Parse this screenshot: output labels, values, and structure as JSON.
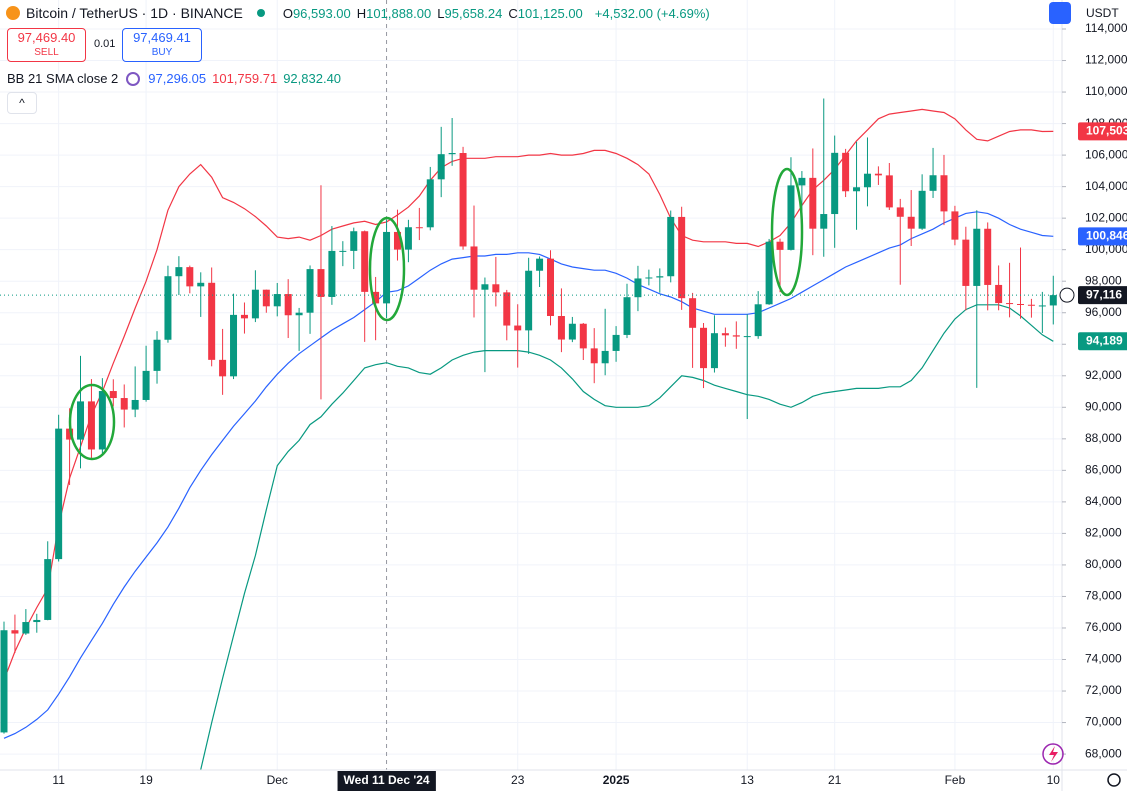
{
  "header": {
    "symbol": "Bitcoin / TetherUS · 1D · BINANCE",
    "ohlc": [
      {
        "key": "O",
        "value": "96,593.00"
      },
      {
        "key": "H",
        "value": "101,888.00"
      },
      {
        "key": "L",
        "value": "95,658.24"
      },
      {
        "key": "C",
        "value": "101,125.00"
      }
    ],
    "change": "+4,532.00 (+4.69%)",
    "currency": "USDT"
  },
  "trade": {
    "sell_price": "97,469.40",
    "sell": "SELL",
    "spread": "0.01",
    "buy_price": "97,469.41",
    "buy": "BUY"
  },
  "indicator": {
    "name": "BB 21 SMA close 2",
    "values": [
      {
        "text": "97,296.05",
        "color": "#2962ff"
      },
      {
        "text": "101,759.71",
        "color": "#f23645"
      },
      {
        "text": "92,832.40",
        "color": "#089981"
      }
    ]
  },
  "chart_data": {
    "type": "candlestick",
    "categories": [
      null,
      null,
      null,
      null,
      null,
      "11",
      null,
      null,
      null,
      null,
      null,
      null,
      null,
      "19",
      null,
      null,
      null,
      null,
      null,
      null,
      null,
      null,
      null,
      null,
      null,
      "Dec",
      null,
      null,
      null,
      null,
      null,
      null,
      null,
      null,
      null,
      "Wed 11 Dec '24",
      null,
      null,
      null,
      null,
      null,
      null,
      null,
      null,
      null,
      null,
      null,
      "23",
      null,
      null,
      null,
      null,
      null,
      null,
      null,
      null,
      "2025",
      null,
      null,
      null,
      null,
      null,
      null,
      null,
      null,
      null,
      null,
      null,
      "13",
      null,
      null,
      null,
      null,
      null,
      null,
      null,
      "21",
      null,
      null,
      null,
      null,
      null,
      null,
      null,
      null,
      null,
      null,
      "Feb",
      null,
      null,
      null,
      null,
      null,
      null,
      null,
      null,
      "10"
    ],
    "crosshair_index": 35,
    "open": [
      69374,
      75857,
      75648,
      76377,
      76509,
      80370,
      88647,
      87952,
      90375,
      87325,
      91032,
      90587,
      89855,
      90465,
      92310,
      94286,
      98317,
      98893,
      97673,
      97900,
      93010,
      91965,
      95864,
      95643,
      97461,
      96407,
      97185,
      95840,
      96002,
      98768,
      97000,
      99921,
      99923,
      101170,
      97323,
      96593,
      101126,
      100004,
      101424,
      101420,
      104463,
      106058,
      106133,
      100204,
      97461,
      97805,
      97292,
      95187,
      94881,
      98664,
      99430,
      95792,
      94299,
      95301,
      93738,
      92793,
      93576,
      94592,
      96985,
      98174,
      98236,
      98315,
      102078,
      96922,
      95043,
      92485,
      94702,
      94567,
      94488,
      94517,
      96535,
      100505,
      99987,
      104078,
      104556,
      101332,
      102261,
      106144,
      103706,
      103960,
      104820,
      104714,
      102682,
      102087,
      101332,
      103734,
      104722,
      102429,
      100636,
      97700,
      101328,
      97763,
      96613,
      96554,
      96506,
      96444,
      96462
    ],
    "high": [
      76400,
      76849,
      77199,
      76900,
      81500,
      89530,
      89940,
      93265,
      91790,
      91850,
      91779,
      91449,
      92594,
      93905,
      94831,
      98984,
      99588,
      98990,
      98564,
      98871,
      94973,
      97208,
      96650,
      98693,
      97469,
      97888,
      98130,
      96305,
      99000,
      104088,
      101500,
      100540,
      101399,
      101215,
      98270,
      101888,
      102540,
      101895,
      102650,
      105250,
      107793,
      108353,
      106524,
      102800,
      98233,
      99540,
      97448,
      96538,
      99487,
      99569,
      99963,
      97544,
      95733,
      95350,
      95024,
      96250,
      95151,
      97839,
      98976,
      98734,
      98813,
      102482,
      102724,
      97258,
      95349,
      95837,
      95060,
      95450,
      95900,
      97371,
      100681,
      100700,
      105865,
      104988,
      106422,
      109588,
      107240,
      106394,
      106850,
      107120,
      105286,
      105500,
      103221,
      103783,
      104782,
      106457,
      106012,
      102783,
      101456,
      102500,
      101729,
      99000,
      99167,
      100137,
      96880,
      97323,
      98345
    ],
    "low": [
      69300,
      74416,
      75560,
      75700,
      76490,
      80216,
      85072,
      86127,
      86668,
      87073,
      90056,
      88722,
      89376,
      90357,
      91500,
      94100,
      97122,
      97232,
      95734,
      92600,
      90791,
      91792,
      94677,
      95407,
      96000,
      95770,
      94395,
      93578,
      94660,
      90500,
      96500,
      98955,
      98771,
      94150,
      94256,
      95658,
      99311,
      99205,
      100610,
      101227,
      103333,
      105321,
      100000,
      95700,
      92232,
      96398,
      94250,
      92520,
      93384,
      97632,
      95199,
      93500,
      94135,
      93000,
      91530,
      92033,
      92888,
      94392,
      96100,
      97735,
      97271,
      97926,
      96181,
      92500,
      91220,
      92206,
      93844,
      93711,
      89256,
      94346,
      96500,
      97300,
      99950,
      102277,
      99651,
      99550,
      100119,
      103339,
      101262,
      102750,
      104106,
      102520,
      97777,
      100233,
      101256,
      103281,
      101560,
      100279,
      96150,
      91231,
      96150,
      96155,
      95707,
      95620,
      95688,
      94713,
      95256
    ],
    "close": [
      75857,
      75648,
      76377,
      76509,
      80370,
      88647,
      87952,
      90375,
      87325,
      91032,
      90587,
      89855,
      90465,
      92310,
      94286,
      98317,
      98893,
      97673,
      97900,
      93010,
      91965,
      95864,
      95643,
      97461,
      96407,
      97185,
      95840,
      96002,
      98768,
      97000,
      99921,
      99923,
      101170,
      97323,
      96593,
      101125,
      100004,
      101424,
      101420,
      104463,
      106058,
      106133,
      100204,
      97461,
      97805,
      97292,
      95187,
      94881,
      98664,
      99430,
      95792,
      94299,
      95301,
      93738,
      92793,
      93576,
      94592,
      96985,
      98174,
      98236,
      98315,
      102078,
      96922,
      95043,
      92485,
      94702,
      94567,
      94488,
      94517,
      96535,
      100505,
      99987,
      104078,
      104556,
      101332,
      102261,
      106144,
      103706,
      103960,
      104820,
      104714,
      102682,
      102087,
      101332,
      103734,
      104722,
      102429,
      100636,
      97700,
      101328,
      97763,
      96613,
      96554,
      96506,
      96444,
      96462,
      97116
    ],
    "close_label": "97,116",
    "up_color": "#089981",
    "down_color": "#f23645",
    "bands": {
      "upper": {
        "color": "#f23645",
        "last_label": "107,503",
        "values": [
          72700,
          74500,
          76000,
          77300,
          78500,
          82500,
          85500,
          87500,
          89500,
          91000,
          92800,
          94500,
          96300,
          98000,
          100000,
          102500,
          104000,
          104800,
          105400,
          104600,
          103300,
          103000,
          102600,
          102100,
          101500,
          100800,
          100700,
          100800,
          100600,
          100900,
          101300,
          101500,
          101700,
          101800,
          101600,
          101760,
          102200,
          102700,
          103400,
          104400,
          105200,
          105600,
          105800,
          105800,
          105800,
          105900,
          105900,
          105900,
          106000,
          106000,
          106100,
          106000,
          106000,
          106100,
          106300,
          106300,
          106100,
          105800,
          105400,
          104800,
          103500,
          102000,
          100900,
          100600,
          100500,
          100500,
          100500,
          100400,
          100400,
          100200,
          100500,
          100900,
          101700,
          102800,
          103800,
          104400,
          105100,
          106000,
          106900,
          107600,
          108300,
          108600,
          108700,
          108800,
          108900,
          108800,
          108700,
          108300,
          107600,
          107000,
          106900,
          107200,
          107500,
          107600,
          107600,
          107500,
          107503
        ]
      },
      "middle": {
        "color": "#2962ff",
        "last_label": "100,846",
        "values": [
          69000,
          69300,
          69700,
          70200,
          70800,
          71800,
          72900,
          74100,
          75200,
          76300,
          77500,
          78600,
          79600,
          80500,
          81400,
          82400,
          83600,
          84900,
          86000,
          87000,
          87900,
          88800,
          89600,
          90400,
          91300,
          92100,
          92800,
          93400,
          93900,
          94400,
          94900,
          95300,
          95700,
          96200,
          96700,
          97296,
          97400,
          97700,
          98200,
          98700,
          99100,
          99400,
          99500,
          99600,
          99600,
          99700,
          99700,
          99800,
          99800,
          99700,
          99400,
          99100,
          98900,
          98800,
          98700,
          98700,
          98500,
          98200,
          97800,
          97500,
          97200,
          97000,
          96700,
          96300,
          96100,
          95900,
          95900,
          95900,
          95900,
          96000,
          96300,
          96600,
          96900,
          97300,
          97700,
          98100,
          98500,
          98900,
          99200,
          99500,
          99800,
          100100,
          100300,
          100700,
          101000,
          101300,
          101700,
          102000,
          102300,
          102400,
          102300,
          102000,
          101600,
          101300,
          101100,
          100900,
          100846
        ]
      },
      "lower": {
        "color": "#089981",
        "last_label": "94,189",
        "values": [
          null,
          null,
          null,
          null,
          null,
          null,
          null,
          null,
          null,
          null,
          null,
          null,
          null,
          null,
          null,
          null,
          null,
          65500,
          67000,
          70000,
          72800,
          75500,
          78200,
          80600,
          83500,
          86300,
          87200,
          87900,
          88900,
          89400,
          90200,
          90900,
          91700,
          92500,
          92700,
          92832,
          92600,
          92500,
          92200,
          92100,
          92500,
          93000,
          93300,
          93500,
          93600,
          93600,
          93600,
          93600,
          93500,
          93300,
          93000,
          92500,
          91800,
          91000,
          90500,
          90100,
          90000,
          90000,
          90000,
          90100,
          90600,
          91300,
          92000,
          91900,
          91700,
          91400,
          91200,
          91000,
          90800,
          90700,
          90500,
          90200,
          90000,
          90300,
          90700,
          90900,
          91000,
          91100,
          91200,
          91200,
          91200,
          91300,
          91300,
          91700,
          92500,
          93600,
          94700,
          95600,
          96200,
          96500,
          96500,
          96500,
          96300,
          95800,
          95200,
          94600,
          94189
        ]
      }
    },
    "ylim": [
      66990,
      115840
    ],
    "yticks": [
      {
        "value": 68000,
        "label": "68,000"
      },
      {
        "value": 70000,
        "label": "70,000"
      },
      {
        "value": 72000,
        "label": "72,000"
      },
      {
        "value": 74000,
        "label": "74,000"
      },
      {
        "value": 76000,
        "label": "76,000"
      },
      {
        "value": 78000,
        "label": "78,000"
      },
      {
        "value": 80000,
        "label": "80,000"
      },
      {
        "value": 82000,
        "label": "82,000"
      },
      {
        "value": 84000,
        "label": "84,000"
      },
      {
        "value": 86000,
        "label": "86,000"
      },
      {
        "value": 88000,
        "label": "88,000"
      },
      {
        "value": 90000,
        "label": "90,000"
      },
      {
        "value": 92000,
        "label": "92,000"
      },
      {
        "value": 94000,
        "label": "94,000"
      },
      {
        "value": 96000,
        "label": "96,000"
      },
      {
        "value": 98000,
        "label": "98,000"
      },
      {
        "value": 100000,
        "label": "100,000"
      },
      {
        "value": 102000,
        "label": "102,000"
      },
      {
        "value": 104000,
        "label": "104,000"
      },
      {
        "value": 106000,
        "label": "106,000"
      },
      {
        "value": 108000,
        "label": "108,000"
      },
      {
        "value": 110000,
        "label": "110,000"
      },
      {
        "value": 112000,
        "label": "112,000"
      },
      {
        "value": 114000,
        "label": "114,000"
      }
    ],
    "grid": true
  }
}
